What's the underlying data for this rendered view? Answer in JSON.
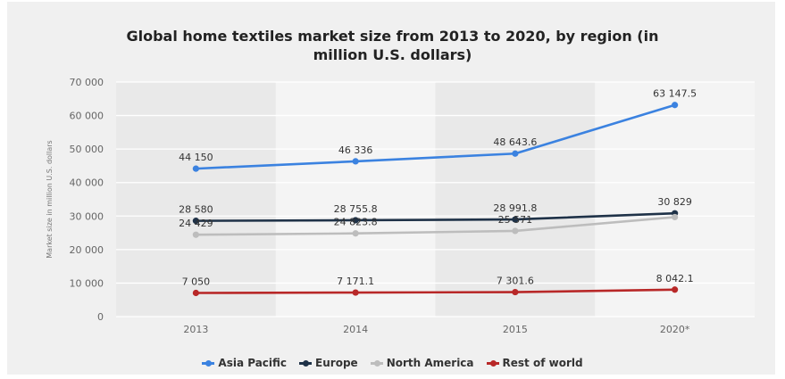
{
  "chart_data": {
    "type": "line",
    "title": "Global home textiles market size from 2013 to 2020, by region (in million U.S. dollars)",
    "title_lines": [
      "Global home textiles market size from 2013 to 2020, by region (in",
      "million U.S. dollars)"
    ],
    "ylabel": "Market size in million U.S. dollars",
    "xlabel": "",
    "categories": [
      "2013",
      "2014",
      "2015",
      "2020*"
    ],
    "ylim": [
      0,
      70000
    ],
    "yticks": [
      0,
      10000,
      20000,
      30000,
      40000,
      50000,
      60000,
      70000
    ],
    "ytick_labels": [
      "0",
      "10 000",
      "20 000",
      "30 000",
      "40 000",
      "50 000",
      "60 000",
      "70 000"
    ],
    "grid": true,
    "legend_position": "bottom",
    "series": [
      {
        "name": "Asia Pacific",
        "color": "#3b82e0",
        "values": [
          44150,
          46336,
          48643.6,
          63147.5
        ],
        "labels": [
          "44 150",
          "46 336",
          "48 643.6",
          "63 147.5"
        ]
      },
      {
        "name": "Europe",
        "color": "#1f3248",
        "values": [
          28580,
          28755.8,
          28991.8,
          30829
        ],
        "labels": [
          "28 580",
          "28 755.8",
          "28 991.8",
          "30 829"
        ]
      },
      {
        "name": "North America",
        "color": "#bdbdbd",
        "values": [
          24429,
          24823.8,
          25571,
          29700
        ],
        "labels": [
          "24 429",
          "24 823.8",
          "25 571",
          ""
        ]
      },
      {
        "name": "Rest of world",
        "color": "#b82828",
        "values": [
          7050,
          7171.1,
          7301.6,
          8042.1
        ],
        "labels": [
          "7 050",
          "7 171.1",
          "7 301.6",
          "8 042.1"
        ]
      }
    ]
  }
}
